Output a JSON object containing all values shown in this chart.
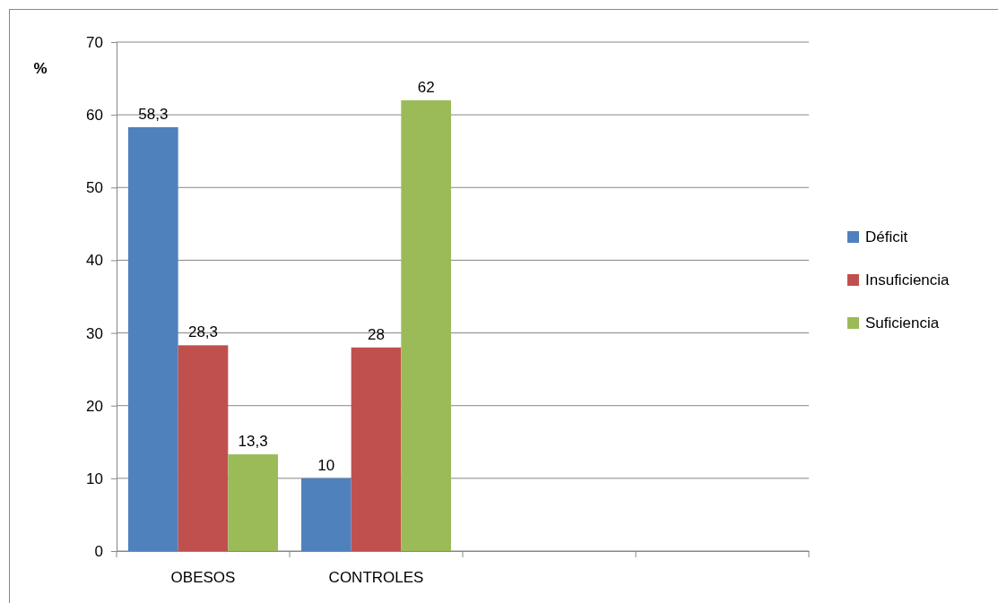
{
  "chart_data": {
    "type": "bar",
    "ylabel": "%",
    "categories": [
      "OBESOS",
      "CONTROLES",
      null,
      null
    ],
    "series": [
      {
        "name": "Déficit",
        "color": "#4f81bd",
        "values": [
          58.3,
          10,
          null,
          null
        ],
        "value_labels": [
          "58,3",
          "10",
          null,
          null
        ]
      },
      {
        "name": "Insuficiencia",
        "color": "#c0504d",
        "values": [
          28.3,
          28,
          null,
          null
        ],
        "value_labels": [
          "28,3",
          "28",
          null,
          null
        ]
      },
      {
        "name": "Suficiencia",
        "color": "#9bbb59",
        "values": [
          13.3,
          62,
          null,
          null
        ],
        "value_labels": [
          "13,3",
          "62",
          null,
          null
        ]
      }
    ],
    "ylim": [
      0,
      70
    ],
    "yticks": [
      0,
      10,
      20,
      30,
      40,
      50,
      60,
      70
    ],
    "grid": "y",
    "legend": "right"
  }
}
